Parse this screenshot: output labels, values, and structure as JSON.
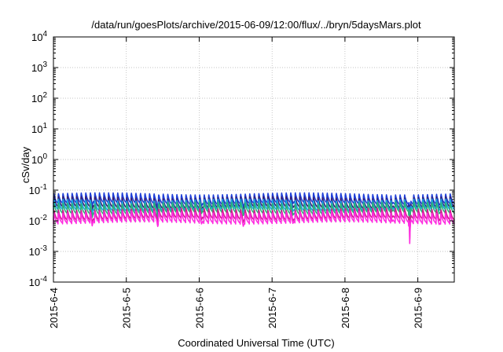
{
  "chart_data": {
    "type": "line",
    "title": "/data/run/goesPlots/archive/2015-06-09/12:00/flux/../bryn/5daysMars.plot",
    "xlabel": "Coordinated Universal Time (UTC)",
    "ylabel": "cSv/day",
    "yscale": "log",
    "ylim": [
      0.0001,
      10000
    ],
    "xlim": [
      "2015-06-04 00:00",
      "2015-06-09 12:00"
    ],
    "grid": true,
    "x_tick_labels": [
      "2015-6-4",
      "2015-6-5",
      "2015-6-6",
      "2015-6-7",
      "2015-6-8",
      "2015-6-9"
    ],
    "y_ticks": [
      {
        "base": "10",
        "exp": "-4",
        "value": 0.0001
      },
      {
        "base": "10",
        "exp": "-3",
        "value": 0.001
      },
      {
        "base": "10",
        "exp": "-2",
        "value": 0.01
      },
      {
        "base": "10",
        "exp": "-1",
        "value": 0.1
      },
      {
        "base": "10",
        "exp": "0",
        "value": 1
      },
      {
        "base": "10",
        "exp": "1",
        "value": 10
      },
      {
        "base": "10",
        "exp": "2",
        "value": 100
      },
      {
        "base": "10",
        "exp": "3",
        "value": 1000
      },
      {
        "base": "10",
        "exp": "4",
        "value": 10000
      }
    ],
    "pattern": {
      "period_hours": 1.5,
      "profile": "sawtooth: sharp rise then decay each orbit period"
    },
    "dips": [
      {
        "time": "2015-06-04 12:45",
        "factor": 0.6
      },
      {
        "time": "2015-06-05 10:20",
        "factor": 0.65
      },
      {
        "time": "2015-06-06 00:45",
        "factor": 0.7
      },
      {
        "time": "2015-06-06 14:30",
        "factor": 0.7
      },
      {
        "time": "2015-06-07 06:50",
        "factor": 0.75
      },
      {
        "time": "2015-06-08 15:30",
        "factor": 0.7
      },
      {
        "time": "2015-06-08 21:20",
        "factor": 0.12
      },
      {
        "time": "2015-06-09 07:00",
        "factor": 0.8
      }
    ],
    "series": [
      {
        "color": "#1f3fd8",
        "base": 0.035,
        "peak": 0.08
      },
      {
        "color": "#3a1f6e",
        "base": 0.026,
        "peak": 0.06
      },
      {
        "color": "#1aa3e8",
        "base": 0.021,
        "peak": 0.05
      },
      {
        "color": "#2ab27a",
        "base": 0.017,
        "peak": 0.04
      },
      {
        "color": "#d01f8c",
        "base": 0.011,
        "peak": 0.025
      },
      {
        "color": "#ff2be0",
        "base": 0.0085,
        "peak": 0.02
      }
    ]
  }
}
